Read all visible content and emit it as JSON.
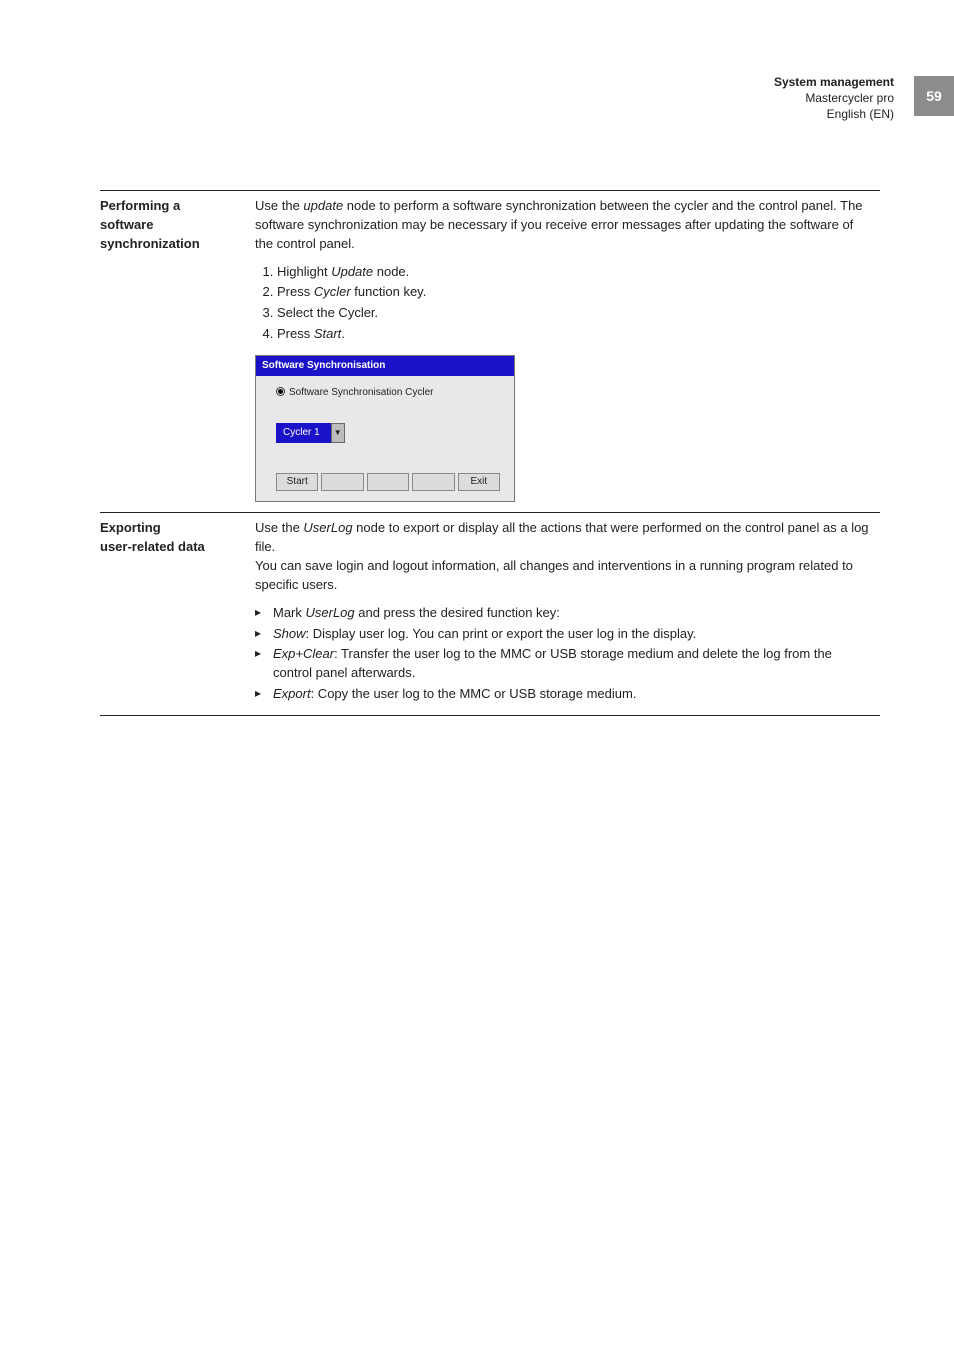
{
  "header": {
    "section": "System management",
    "product": "Mastercycler pro",
    "lang": "English (EN)",
    "page_number": "59",
    "tab_bg": "#8c8c8c"
  },
  "row1": {
    "label_line1": "Performing a",
    "label_line2": "software",
    "label_line3": "synchronization",
    "intro_part1": "Use the ",
    "intro_italic": "update",
    "intro_part2": " node to perform a software synchronization between the cycler and the control panel. The software synchronization may be necessary if you receive error messages after updating the software of the control panel.",
    "steps": {
      "s1a": "Highlight ",
      "s1b": "Update",
      "s1c": " node.",
      "s2a": "Press ",
      "s2b": "Cycler",
      "s2c": " function key.",
      "s3": " Select the Cycler.",
      "s4a": "Press ",
      "s4b": "Start",
      "s4c": "."
    },
    "mock": {
      "title": "Software Synchronisation",
      "radio_label": "Software Synchronisation Cycler",
      "select_value": "Cycler 1",
      "btn_start": "Start",
      "btn_exit": "Exit",
      "title_bg": "#1a12c9",
      "select_bg": "#1a12c9"
    }
  },
  "row2": {
    "label_line1": "Exporting",
    "label_line2": "user-related data",
    "p1a": "Use the ",
    "p1b": "UserLog",
    "p1c": " node to export or display all the actions that were performed on the control panel as a log file.",
    "p2": "You can save login and logout information, all changes and interventions in a running program related to specific users.",
    "b1a": "Mark ",
    "b1b": "UserLog",
    "b1c": " and press the desired function key:",
    "b2a": "Show",
    "b2b": ": Display user log. You can print or export the user log in the display.",
    "b3a": "Exp+Clear",
    "b3b": ": Transfer the user log to the MMC or USB storage medium and delete the log from the control panel afterwards.",
    "b4a": "Export",
    "b4b": ": Copy the user log to the MMC or USB storage medium."
  }
}
